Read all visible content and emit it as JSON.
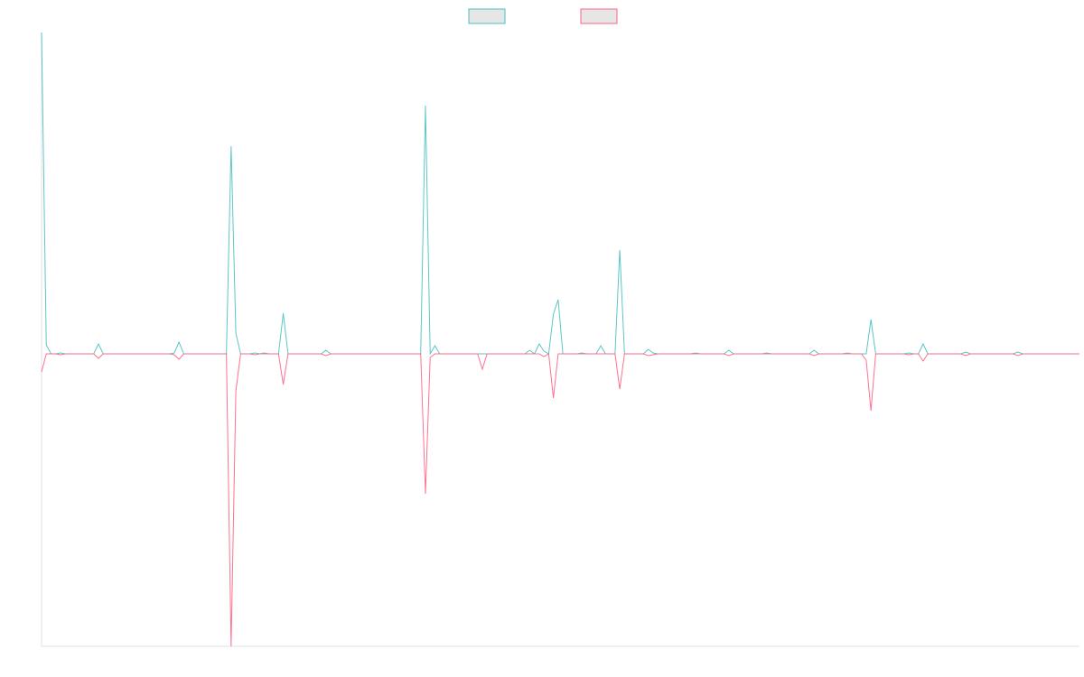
{
  "chart_data": {
    "type": "line",
    "categories": [
      null,
      null,
      null,
      null,
      null,
      null,
      null,
      null,
      null,
      null,
      null,
      null,
      null,
      null,
      null,
      null,
      null,
      null,
      null,
      null,
      null,
      null,
      null,
      null,
      null,
      null,
      null,
      null,
      null,
      null,
      null,
      null,
      null,
      null,
      null,
      null,
      null,
      null,
      null,
      null,
      null,
      null,
      null,
      null,
      null,
      null,
      null,
      null,
      null,
      null,
      null,
      null,
      null,
      null,
      null,
      null,
      null,
      null,
      null,
      null,
      null,
      null,
      null,
      null,
      null,
      null,
      null,
      null,
      null,
      null,
      null,
      null,
      null,
      null,
      null,
      null,
      null,
      null,
      null,
      null,
      null,
      null,
      null,
      null,
      null,
      null,
      null,
      null,
      null,
      null,
      null,
      null,
      null,
      null,
      null,
      null,
      null,
      null,
      null,
      null,
      null,
      null,
      null,
      null,
      null,
      null,
      null,
      null,
      null,
      null,
      null,
      null,
      null,
      null,
      null,
      null,
      null,
      null,
      null,
      null,
      null,
      null,
      null,
      null,
      null,
      null,
      null,
      null,
      null,
      null,
      null,
      null,
      null,
      null,
      null,
      null,
      null,
      null,
      null,
      null,
      null,
      null,
      null,
      null,
      null,
      null,
      null,
      null,
      null,
      null,
      null,
      null,
      null,
      null,
      null,
      null,
      null,
      null,
      null,
      null,
      null,
      null,
      null,
      null,
      null,
      null,
      null,
      null,
      null,
      null,
      null,
      null,
      null,
      null,
      null,
      null,
      null,
      null,
      null,
      null,
      null,
      null,
      null,
      null,
      null,
      null,
      null,
      null,
      null,
      null,
      null,
      null,
      null,
      null,
      null,
      null,
      null,
      null,
      null,
      null,
      null,
      null,
      null,
      null,
      null,
      null,
      null,
      null,
      null,
      null,
      null,
      null,
      null,
      null,
      null,
      null,
      null,
      null,
      null,
      null
    ],
    "series": [
      {
        "color": "#4bc0c0",
        "values": [
          356,
          10,
          0,
          0,
          1,
          0,
          0,
          0,
          0,
          0,
          0,
          0,
          11,
          0,
          0,
          0,
          0,
          0,
          0,
          0,
          0,
          0,
          0,
          0,
          0,
          0,
          0,
          0,
          1,
          13,
          0,
          0,
          0,
          0,
          0,
          0,
          0,
          0,
          0,
          0,
          230,
          23,
          0,
          0,
          0,
          1,
          0,
          1,
          0,
          0,
          0,
          45,
          0,
          0,
          0,
          0,
          0,
          0,
          0,
          0,
          4,
          0,
          0,
          0,
          0,
          0,
          0,
          0,
          0,
          0,
          0,
          0,
          0,
          0,
          0,
          0,
          0,
          0,
          0,
          0,
          0,
          275,
          0,
          9,
          0,
          0,
          0,
          0,
          0,
          0,
          0,
          0,
          0,
          0,
          0,
          0,
          0,
          0,
          0,
          0,
          0,
          0,
          0,
          4,
          0,
          11,
          3,
          0,
          44,
          60,
          0,
          0,
          0,
          0,
          1,
          0,
          0,
          0,
          9,
          0,
          0,
          0,
          115,
          0,
          0,
          0,
          0,
          0,
          5,
          1,
          0,
          0,
          0,
          0,
          0,
          0,
          0,
          0,
          1,
          0,
          0,
          0,
          0,
          0,
          0,
          4,
          0,
          0,
          0,
          0,
          0,
          0,
          0,
          1,
          0,
          0,
          0,
          0,
          0,
          0,
          0,
          0,
          0,
          4,
          0,
          0,
          0,
          0,
          0,
          0,
          1,
          0,
          0,
          0,
          0,
          38,
          0,
          0,
          0,
          0,
          0,
          0,
          0,
          1,
          0,
          0,
          11,
          0,
          0,
          0,
          0,
          0,
          0,
          0,
          0,
          2,
          0,
          0,
          0,
          0,
          0,
          0,
          0,
          0,
          0,
          0,
          2,
          0,
          0,
          0,
          0,
          0,
          0,
          0,
          0,
          0,
          0,
          0,
          0,
          0
        ]
      },
      {
        "color": "#ff6384",
        "values": [
          -20,
          0,
          0,
          0,
          -1,
          0,
          0,
          0,
          0,
          0,
          0,
          0,
          -5,
          0,
          0,
          0,
          0,
          0,
          0,
          0,
          0,
          0,
          0,
          0,
          0,
          0,
          0,
          0,
          -1,
          -6,
          0,
          0,
          0,
          0,
          0,
          0,
          0,
          0,
          0,
          0,
          -324,
          -41,
          0,
          0,
          0,
          -1,
          0,
          0,
          0,
          0,
          0,
          -34,
          0,
          0,
          0,
          0,
          0,
          0,
          0,
          0,
          -2,
          0,
          0,
          0,
          0,
          0,
          0,
          0,
          0,
          0,
          0,
          0,
          0,
          0,
          0,
          0,
          0,
          0,
          0,
          0,
          0,
          -155,
          -4,
          0,
          0,
          0,
          0,
          0,
          0,
          0,
          0,
          0,
          0,
          -17,
          0,
          0,
          0,
          0,
          0,
          0,
          0,
          0,
          0,
          0,
          0,
          0,
          -3,
          0,
          -49,
          0,
          0,
          0,
          0,
          0,
          0,
          0,
          0,
          0,
          0,
          0,
          0,
          0,
          -39,
          0,
          0,
          0,
          0,
          0,
          -2,
          -1,
          0,
          0,
          0,
          0,
          0,
          0,
          0,
          0,
          0,
          0,
          0,
          0,
          0,
          0,
          0,
          -2,
          0,
          0,
          0,
          0,
          0,
          0,
          0,
          0,
          0,
          0,
          0,
          0,
          0,
          0,
          0,
          0,
          0,
          -2,
          0,
          0,
          0,
          0,
          0,
          0,
          0,
          0,
          0,
          0,
          -7,
          -63,
          0,
          0,
          0,
          0,
          0,
          0,
          0,
          -1,
          0,
          0,
          -8,
          0,
          0,
          0,
          0,
          0,
          0,
          0,
          0,
          -2,
          0,
          0,
          0,
          0,
          0,
          0,
          0,
          0,
          0,
          0,
          -2,
          0,
          0,
          0,
          0,
          0,
          0,
          0,
          0,
          0,
          0,
          0,
          0,
          0
        ]
      }
    ],
    "ylim": [
      -324,
      356
    ],
    "legend": "top"
  }
}
